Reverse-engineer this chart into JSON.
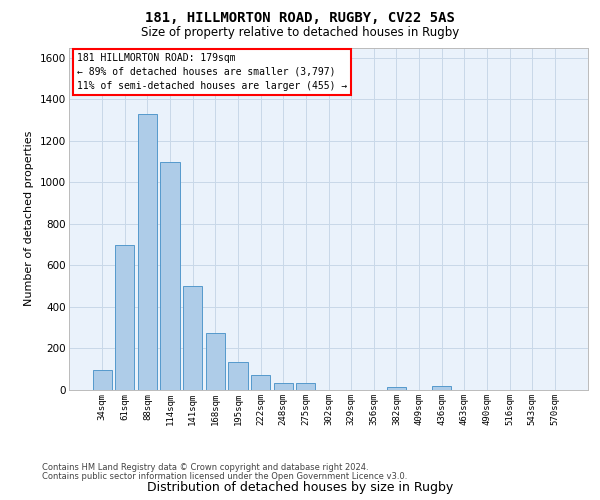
{
  "title_line1": "181, HILLMORTON ROAD, RUGBY, CV22 5AS",
  "title_line2": "Size of property relative to detached houses in Rugby",
  "xlabel": "Distribution of detached houses by size in Rugby",
  "ylabel": "Number of detached properties",
  "footer_line1": "Contains HM Land Registry data © Crown copyright and database right 2024.",
  "footer_line2": "Contains public sector information licensed under the Open Government Licence v3.0.",
  "annotation_title": "181 HILLMORTON ROAD: 179sqm",
  "annotation_line1": "← 89% of detached houses are smaller (3,797)",
  "annotation_line2": "11% of semi-detached houses are larger (455) →",
  "bar_labels": [
    "34sqm",
    "61sqm",
    "88sqm",
    "114sqm",
    "141sqm",
    "168sqm",
    "195sqm",
    "222sqm",
    "248sqm",
    "275sqm",
    "302sqm",
    "329sqm",
    "356sqm",
    "382sqm",
    "409sqm",
    "436sqm",
    "463sqm",
    "490sqm",
    "516sqm",
    "543sqm",
    "570sqm"
  ],
  "bar_values": [
    95,
    700,
    1330,
    1100,
    500,
    275,
    135,
    70,
    35,
    35,
    0,
    0,
    0,
    15,
    0,
    20,
    0,
    0,
    0,
    0,
    0
  ],
  "bar_color": "#aecce8",
  "bar_edge_color": "#5599cc",
  "ylim": [
    0,
    1650
  ],
  "yticks": [
    0,
    200,
    400,
    600,
    800,
    1000,
    1200,
    1400,
    1600
  ],
  "background_color": "#ffffff",
  "grid_color": "#c8d8e8",
  "axes_bg_color": "#eaf2fb"
}
